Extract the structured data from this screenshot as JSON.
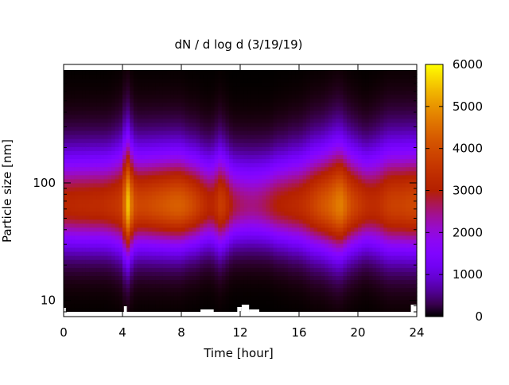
{
  "chart_data": {
    "type": "heatmap",
    "title": "dN / d log d (3/19/19)",
    "xlabel": "Time [hour]",
    "ylabel": "Particle size [nm]",
    "xlim": [
      0,
      24
    ],
    "ylim_nm": [
      8,
      900
    ],
    "y_scale": "log",
    "x_ticks": [
      0,
      4,
      8,
      12,
      16,
      20,
      24
    ],
    "x_tick_labels": [
      "0",
      "4",
      "8",
      "12",
      "16",
      "20",
      "24"
    ],
    "y_major_ticks": [
      10,
      100
    ],
    "y_tick_labels": [
      "10",
      "100"
    ],
    "colorbar": {
      "min": 0,
      "max": 6000,
      "ticks": [
        0,
        1000,
        2000,
        3000,
        4000,
        5000,
        6000
      ],
      "tick_labels": [
        "0",
        "1000",
        "2000",
        "3000",
        "4000",
        "5000",
        "6000"
      ],
      "palette": "gnuplot (black-purple-red-orange-yellow)"
    },
    "grid": false,
    "peak_size_nm": 65,
    "intensity_profile": {
      "hours": [
        0,
        0.5,
        1,
        1.5,
        2,
        2.5,
        3,
        3.5,
        3.9,
        4.1,
        4.3,
        4.5,
        4.7,
        5,
        5.5,
        6,
        6.5,
        7,
        7.5,
        8,
        8.5,
        9,
        9.5,
        10,
        10.3,
        10.6,
        10.9,
        11.2,
        11.5,
        12,
        12.5,
        13,
        13.5,
        14,
        14.5,
        15,
        15.5,
        16,
        16.5,
        17,
        17.5,
        18,
        18.5,
        18.8,
        19.1,
        19.5,
        20,
        20.5,
        21,
        21.5,
        22,
        22.5,
        23,
        23.5,
        24
      ],
      "peak_values": [
        3200,
        3200,
        3250,
        3250,
        3300,
        3300,
        3400,
        3500,
        3700,
        4300,
        5600,
        5200,
        4200,
        3900,
        3900,
        4000,
        4100,
        4200,
        4300,
        4300,
        4100,
        3800,
        3400,
        3100,
        3300,
        3700,
        3600,
        3200,
        2800,
        2600,
        2500,
        2500,
        2600,
        2800,
        3000,
        3100,
        3200,
        3300,
        3500,
        3800,
        4100,
        4300,
        4600,
        4800,
        4500,
        4000,
        3700,
        3400,
        3300,
        3400,
        3700,
        3800,
        3800,
        3900,
        3900
      ],
      "width_factor": [
        1.0,
        1.0,
        1.0,
        1.0,
        1.0,
        1.0,
        1.0,
        1.05,
        1.1,
        1.2,
        1.25,
        1.2,
        1.1,
        1.05,
        1.05,
        1.05,
        1.05,
        1.05,
        1.05,
        1.05,
        1.0,
        1.0,
        0.95,
        0.95,
        1.0,
        1.05,
        1.0,
        0.95,
        0.9,
        0.9,
        0.9,
        0.9,
        0.9,
        0.9,
        0.95,
        0.95,
        1.0,
        1.0,
        1.05,
        1.1,
        1.1,
        1.15,
        1.2,
        1.2,
        1.15,
        1.1,
        1.05,
        1.0,
        1.05,
        1.1,
        1.15,
        1.15,
        1.15,
        1.15,
        1.15
      ]
    }
  }
}
